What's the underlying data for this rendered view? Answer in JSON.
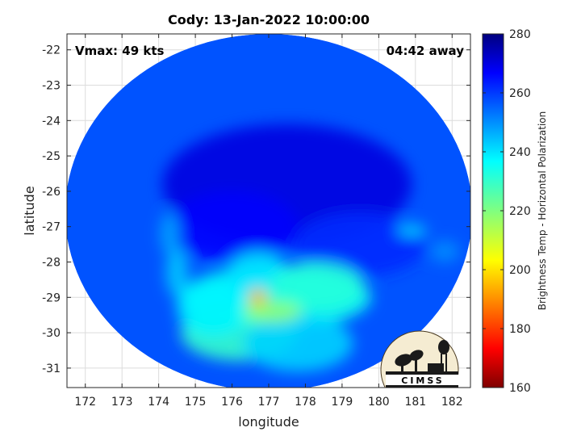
{
  "chart_data": {
    "type": "heatmap",
    "title": "Cody: 13-Jan-2022 10:00:00",
    "xlabel": "longitude",
    "ylabel": "latitude",
    "xlim": [
      171.5,
      182.5
    ],
    "ylim": [
      -31.55,
      -21.55
    ],
    "x_ticks": [
      172,
      173,
      174,
      175,
      176,
      177,
      178,
      179,
      180,
      181,
      182
    ],
    "y_ticks": [
      -22,
      -23,
      -24,
      -25,
      -26,
      -27,
      -28,
      -29,
      -30,
      -31
    ],
    "grid": true,
    "annotations": {
      "vmax": "Vmax: 49 kts",
      "away": "04:42 away"
    },
    "colorbar": {
      "label": "Brightness Temp - Horizontal Polarization",
      "range": [
        160,
        280
      ],
      "ticks": [
        160,
        180,
        200,
        220,
        240,
        260,
        280
      ],
      "colormap": "jet"
    },
    "swath": {
      "center": [
        177,
        -26.6
      ],
      "radius_lon": 5.55,
      "radius_lat": 5.05,
      "background_value": 257,
      "features": [
        {
          "lon": 177.5,
          "lat": -25.8,
          "rx": 3.4,
          "ry": 1.7,
          "value": 270
        },
        {
          "lon": 176.0,
          "lat": -27.0,
          "rx": 1.8,
          "ry": 1.0,
          "value": 267
        },
        {
          "lon": 179.5,
          "lat": -27.5,
          "rx": 1.8,
          "ry": 0.9,
          "value": 262
        },
        {
          "lon": 177.2,
          "lat": -29.0,
          "rx": 2.6,
          "ry": 0.9,
          "value": 235
        },
        {
          "lon": 176.7,
          "lat": -28.5,
          "rx": 0.9,
          "ry": 0.8,
          "value": 240
        },
        {
          "lon": 176.2,
          "lat": -30.0,
          "rx": 1.6,
          "ry": 0.8,
          "value": 230
        },
        {
          "lon": 178.3,
          "lat": -28.7,
          "rx": 1.3,
          "ry": 0.7,
          "value": 232
        },
        {
          "lon": 175.5,
          "lat": -29.3,
          "rx": 1.0,
          "ry": 0.8,
          "value": 238
        },
        {
          "lon": 177.8,
          "lat": -30.3,
          "rx": 1.5,
          "ry": 0.8,
          "value": 242
        },
        {
          "lon": 177.1,
          "lat": -29.4,
          "rx": 0.8,
          "ry": 0.3,
          "value": 218
        },
        {
          "lon": 176.7,
          "lat": -29.0,
          "rx": 0.25,
          "ry": 0.25,
          "value": 195
        },
        {
          "lon": 174.5,
          "lat": -28.3,
          "rx": 0.3,
          "ry": 0.7,
          "value": 243
        },
        {
          "lon": 174.3,
          "lat": -27.2,
          "rx": 0.25,
          "ry": 0.6,
          "value": 247
        },
        {
          "lon": 180.9,
          "lat": -27.1,
          "rx": 0.4,
          "ry": 0.15,
          "value": 240
        },
        {
          "lon": 181.8,
          "lat": -27.7,
          "rx": 0.4,
          "ry": 0.3,
          "value": 250
        }
      ]
    }
  },
  "logo": {
    "text": "CIMSS"
  }
}
